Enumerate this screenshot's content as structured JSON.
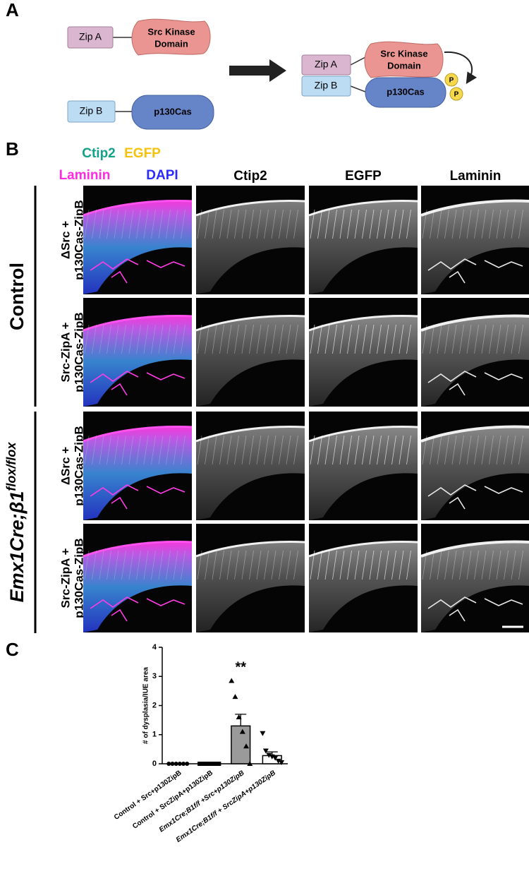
{
  "panel_a": {
    "label": "A",
    "left": {
      "zip_a": "Zip A",
      "src": [
        "Src Kinase",
        "Domain"
      ],
      "zip_b": "Zip B",
      "p130": "p130Cas"
    },
    "right": {
      "zip_a": "Zip A",
      "src": [
        "Src Kinase",
        "Domain"
      ],
      "zip_b": "Zip B",
      "p130": "p130Cas",
      "phospho": [
        "P",
        "P"
      ]
    }
  },
  "panel_b": {
    "label": "B",
    "legend": [
      {
        "text": "Ctip2",
        "color": "#15a08a"
      },
      {
        "text": "EGFP",
        "color": "#f4c20d"
      },
      {
        "text": "Laminin",
        "color": "#ff2be0"
      },
      {
        "text": "DAPI",
        "color": "#2a2bff"
      }
    ],
    "columns": [
      "Ctip2",
      "EGFP",
      "Laminin"
    ],
    "rows": [
      [
        "ΔSrc +",
        "p130Cas-ZipB"
      ],
      [
        "Src-ZipA +",
        "p130Cas-ZipB"
      ],
      [
        "ΔSrc +",
        "p130Cas-ZipB"
      ],
      [
        "Src-ZipA +",
        "p130Cas-ZipB"
      ]
    ],
    "groups": [
      {
        "text": "Control"
      },
      {
        "text": "Emx1Cre;β1",
        "sup": "flox/flox"
      }
    ]
  },
  "panel_c": {
    "label": "C"
  },
  "chart_data": {
    "type": "bar",
    "ylabel": "# of dysplasia/IUE area",
    "categories": [
      "Control + Src+p130ZipB",
      "Control + SrcZipA+p130ZipB",
      "Emx1Cre;B1f/f +Src+p130ZipB",
      "Emx1Cre;B1f/f + SrcZipA+p130ZipB"
    ],
    "values": [
      0,
      0,
      1.3,
      0.28
    ],
    "errors": [
      0,
      0,
      0.4,
      0.13
    ],
    "points": [
      [
        0,
        0,
        0,
        0,
        0,
        0
      ],
      [
        0,
        0,
        0,
        0,
        0,
        0,
        0,
        0
      ],
      [
        2.85,
        2.3,
        1.6,
        1.1,
        0.6,
        0
      ],
      [
        1.05,
        0.45,
        0.3,
        0.25,
        0.2,
        0.1,
        0.05
      ]
    ],
    "markers": [
      "circle",
      "square",
      "triangle-up",
      "triangle-down"
    ],
    "colors": [
      "#ffffff",
      "#ffffff",
      "#9a9a9a",
      "#ffffff"
    ],
    "ylim": [
      0,
      4
    ],
    "yticks": [
      0,
      1,
      2,
      3,
      4
    ],
    "annotations": [
      {
        "text": "**",
        "category": 2
      }
    ]
  }
}
